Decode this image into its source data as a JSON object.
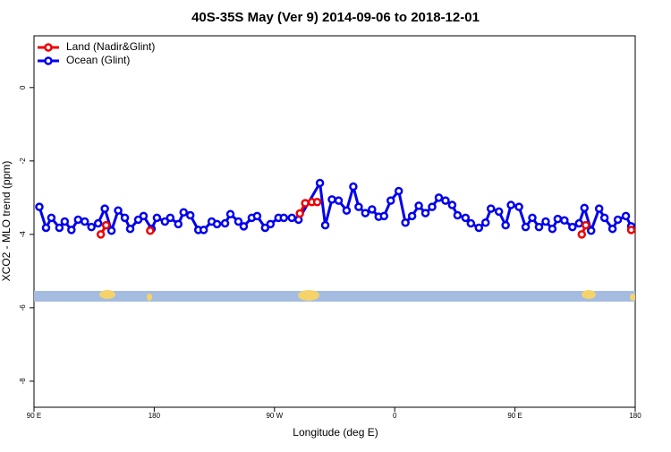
{
  "chart_data": {
    "type": "line",
    "title": "40S-35S May (Ver 9)   2014-09-06 to 2018-12-01",
    "x_label": "Longitude (deg E)",
    "y_label": "XCO2 - MLO trend (ppm)",
    "xlim": [
      90,
      540
    ],
    "xticks": [
      {
        "value": 90,
        "label": "90 E"
      },
      180,
      {
        "value": 270,
        "label": "90 W"
      },
      {
        "value": 360,
        "label": "0"
      },
      {
        "value": 450,
        "label": "90 E"
      },
      {
        "value": 540,
        "label": "180"
      }
    ],
    "ylim": [
      -8.71,
      1.41
    ],
    "yticks": [
      0,
      -2,
      -4,
      -6,
      -8
    ],
    "legend": "topleft",
    "series": [
      {
        "name": "Ocean (Glint)",
        "color": "#0000ee",
        "x": [
          94,
          99,
          103,
          109,
          113,
          118,
          123,
          128,
          133,
          138,
          143,
          148,
          153,
          158,
          162,
          168,
          172,
          178,
          182,
          188,
          192,
          198,
          202,
          207,
          213,
          217,
          223,
          227,
          233,
          237,
          243,
          247,
          253,
          257,
          263,
          267,
          273,
          277,
          283,
          288,
          304,
          308,
          313,
          318,
          324,
          329,
          333,
          338,
          343,
          348,
          352,
          357,
          363,
          368,
          373,
          378,
          383,
          388,
          393,
          398,
          403,
          407,
          413,
          417,
          423,
          428,
          432,
          438,
          443,
          447,
          453,
          458,
          463,
          468,
          473,
          478,
          482,
          487,
          493,
          498,
          502,
          507,
          513,
          517,
          523,
          527,
          533,
          537
        ],
        "values": [
          -3.25,
          -3.82,
          -3.55,
          -3.82,
          -3.65,
          -3.88,
          -3.6,
          -3.65,
          -3.8,
          -3.7,
          -3.3,
          -3.9,
          -3.35,
          -3.55,
          -3.85,
          -3.6,
          -3.5,
          -3.85,
          -3.55,
          -3.65,
          -3.55,
          -3.72,
          -3.4,
          -3.48,
          -3.88,
          -3.88,
          -3.65,
          -3.72,
          -3.7,
          -3.45,
          -3.65,
          -3.78,
          -3.55,
          -3.5,
          -3.82,
          -3.72,
          -3.55,
          -3.55,
          -3.55,
          -3.6,
          -2.6,
          -3.75,
          -3.05,
          -3.08,
          -3.35,
          -2.7,
          -3.25,
          -3.42,
          -3.32,
          -3.52,
          -3.5,
          -3.08,
          -2.82,
          -3.68,
          -3.5,
          -3.22,
          -3.42,
          -3.25,
          -3.0,
          -3.08,
          -3.2,
          -3.48,
          -3.55,
          -3.7,
          -3.82,
          -3.68,
          -3.3,
          -3.38,
          -3.75,
          -3.2,
          -3.25,
          -3.8,
          -3.55,
          -3.8,
          -3.65,
          -3.85,
          -3.58,
          -3.62,
          -3.8,
          -3.7,
          -3.28,
          -3.9,
          -3.3,
          -3.55,
          -3.85,
          -3.6,
          -3.5,
          -3.78
        ]
      },
      {
        "name": "Land (Nadir&Glint)",
        "color": "#ee0000",
        "x": [
          140,
          144,
          null,
          177,
          null,
          289,
          293,
          298,
          302,
          null,
          500,
          503,
          null,
          537
        ],
        "values": [
          -4.0,
          -3.75,
          null,
          -3.9,
          null,
          -3.43,
          -3.15,
          -3.12,
          -3.12,
          null,
          -4.0,
          -3.75,
          null,
          -3.88
        ]
      }
    ]
  }
}
